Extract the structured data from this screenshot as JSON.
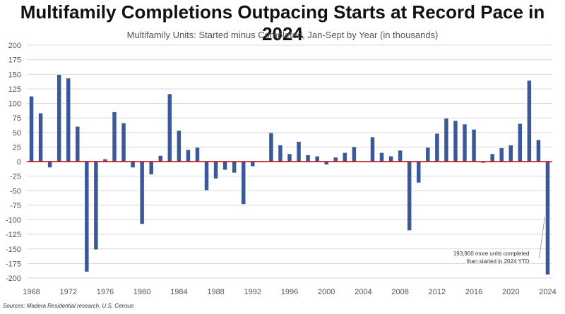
{
  "chart_data": {
    "type": "bar",
    "title": "Multifamily Completions Outpacing Starts at Record Pace in 2024",
    "subtitle": "Multifamily Units: Started minus Completed, Jan-Sept by Year (in thousands)",
    "source": "Sources: Madera Residential research, U.S. Census",
    "ylim": [
      -200,
      200
    ],
    "yticks": [
      200,
      175,
      150,
      125,
      100,
      75,
      50,
      25,
      0,
      -25,
      -50,
      -75,
      -100,
      -125,
      -150,
      -175,
      -200
    ],
    "xticks": [
      1968,
      1972,
      1976,
      1980,
      1984,
      1988,
      1992,
      1996,
      2000,
      2004,
      2008,
      2012,
      2016,
      2020,
      2024
    ],
    "grid": true,
    "colors": {
      "bar": "#3b5998",
      "zero_line": "#cc0000",
      "grid": "#d9d9d9"
    },
    "categories": [
      1968,
      1969,
      1970,
      1971,
      1972,
      1973,
      1974,
      1975,
      1976,
      1977,
      1978,
      1979,
      1980,
      1981,
      1982,
      1983,
      1984,
      1985,
      1986,
      1987,
      1988,
      1989,
      1990,
      1991,
      1992,
      1993,
      1994,
      1995,
      1996,
      1997,
      1998,
      1999,
      2000,
      2001,
      2002,
      2003,
      2004,
      2005,
      2006,
      2007,
      2008,
      2009,
      2010,
      2011,
      2012,
      2013,
      2014,
      2015,
      2016,
      2017,
      2018,
      2019,
      2020,
      2021,
      2022,
      2023,
      2024
    ],
    "values": [
      112,
      83,
      -10,
      149,
      143,
      60,
      -189,
      -151,
      4,
      85,
      66,
      -10,
      -107,
      -22,
      10,
      116,
      53,
      20,
      24,
      -49,
      -29,
      -14,
      -19,
      -73,
      -8,
      -1,
      49,
      28,
      13,
      34,
      11,
      9,
      -5,
      7,
      15,
      25,
      0,
      42,
      15,
      9,
      19,
      -118,
      -36,
      24,
      48,
      74,
      70,
      64,
      55,
      -2,
      13,
      23,
      28,
      65,
      139,
      37,
      -194
    ],
    "annotation": {
      "year": 2024,
      "lines": [
        "193,900 more units completed",
        "than started in 2024 YTD"
      ]
    }
  }
}
